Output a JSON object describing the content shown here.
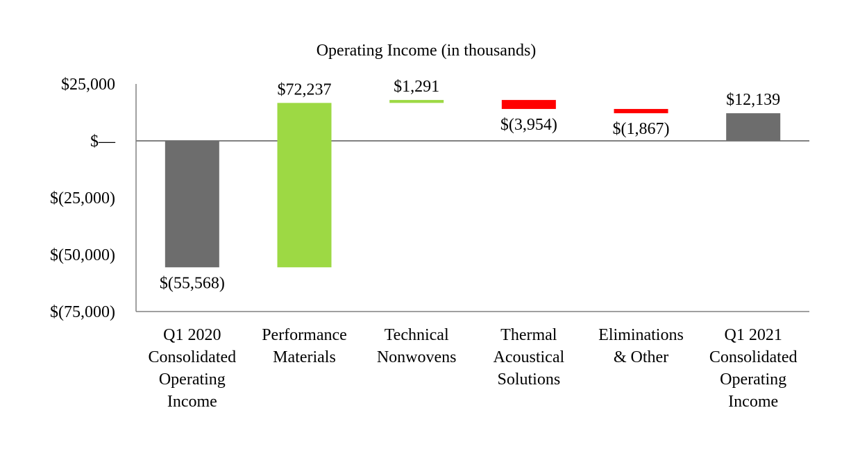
{
  "chart_data": {
    "type": "bar",
    "subtype": "waterfall",
    "title": "Operating Income (in thousands)",
    "xlabel": "",
    "ylabel": "",
    "ylim": [
      -75000,
      25000
    ],
    "yticks": [
      {
        "value": 25000,
        "label": "$25,000"
      },
      {
        "value": 0,
        "label": "$—"
      },
      {
        "value": -25000,
        "label": "$(25,000)"
      },
      {
        "value": -50000,
        "label": "$(50,000)"
      },
      {
        "value": -75000,
        "label": "$(75,000)"
      }
    ],
    "categories": [
      [
        "Q1 2020",
        "Consolidated",
        "Operating",
        "Income"
      ],
      [
        "Performance",
        "Materials"
      ],
      [
        "Technical",
        "Nonwovens"
      ],
      [
        "Thermal",
        "Acoustical",
        "Solutions"
      ],
      [
        "Eliminations",
        "& Other"
      ],
      [
        "Q1 2021",
        "Consolidated",
        "Operating",
        "Income"
      ]
    ],
    "values": [
      -55568,
      72237,
      1291,
      -3954,
      -1867,
      12139
    ],
    "kinds": [
      "total",
      "delta",
      "delta",
      "delta",
      "delta",
      "total"
    ],
    "data_labels": [
      "$(55,568)",
      "$72,237",
      "$1,291",
      "$(3,954)",
      "$(1,867)",
      "$12,139"
    ],
    "colors": {
      "total": "#6d6d6d",
      "increase": "#9dd944",
      "decrease": "#ff0000",
      "axis": "#808080",
      "text": "#000000"
    },
    "grid": false,
    "legend": "none"
  }
}
